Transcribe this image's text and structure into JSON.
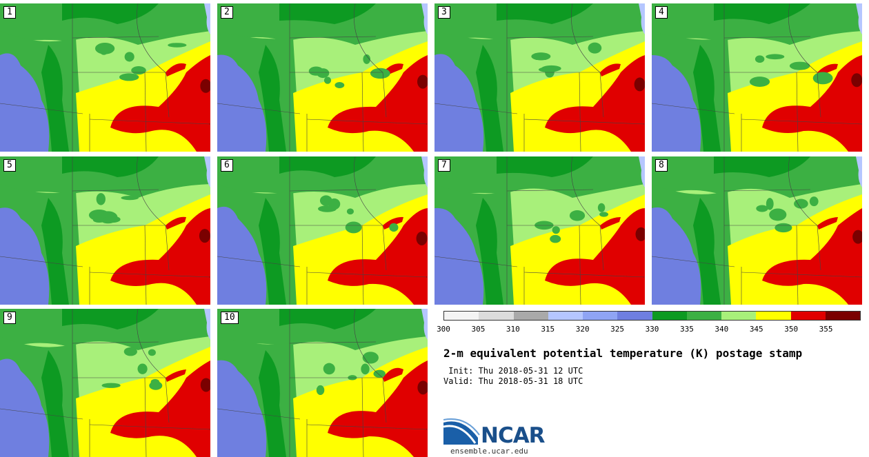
{
  "panels": [
    {
      "label": "1"
    },
    {
      "label": "2"
    },
    {
      "label": "3"
    },
    {
      "label": "4"
    },
    {
      "label": "5"
    },
    {
      "label": "6"
    },
    {
      "label": "7"
    },
    {
      "label": "8"
    },
    {
      "label": "9"
    },
    {
      "label": "10"
    }
  ],
  "colorbar": {
    "colors": [
      "#f4f4f4",
      "#dcdcdc",
      "#a9a9a9",
      "#b5c6ff",
      "#8fa4f4",
      "#6f7fe0",
      "#0d9a22",
      "#3cb043",
      "#a8f07a",
      "#ffff00",
      "#e00000",
      "#7a0000"
    ],
    "ticks": [
      "300",
      "305",
      "310",
      "315",
      "320",
      "325",
      "330",
      "335",
      "340",
      "345",
      "350",
      "355"
    ]
  },
  "title": "2-m equivalent potential temperature (K) postage stamp",
  "init": " Init: Thu 2018-05-31 12 UTC",
  "valid": "Valid: Thu 2018-05-31 18 UTC",
  "logo": {
    "text": "NCAR",
    "url": "ensemble.ucar.edu"
  }
}
